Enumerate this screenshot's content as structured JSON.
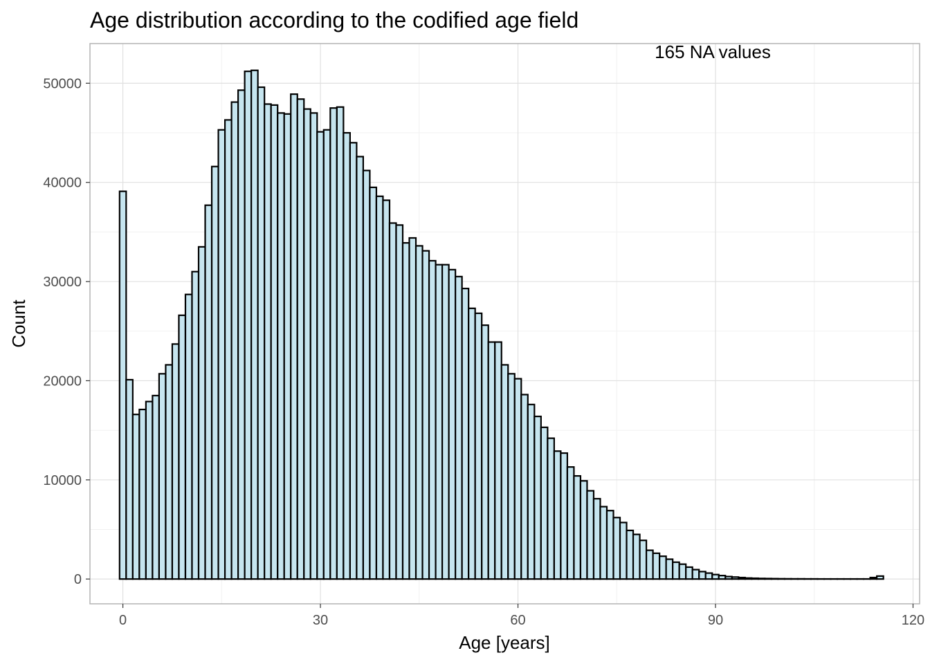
{
  "chart_data": {
    "type": "bar",
    "title": "Age distribution according to the codified age field",
    "xlabel": "Age [years]",
    "ylabel": "Count",
    "annotation": "165 NA values",
    "xlim": [
      -5,
      121
    ],
    "ylim": [
      -2500,
      54000
    ],
    "x_ticks": [
      0,
      30,
      60,
      90,
      120
    ],
    "y_ticks": [
      0,
      10000,
      20000,
      30000,
      40000,
      50000
    ],
    "grid": true,
    "bin_width": 1,
    "x_start": 0,
    "values": [
      39100,
      20100,
      16600,
      17100,
      17900,
      18500,
      20700,
      21600,
      23700,
      26600,
      28700,
      31000,
      33500,
      37700,
      41600,
      45300,
      46300,
      48100,
      49300,
      51200,
      51300,
      49600,
      47900,
      47800,
      47000,
      46900,
      48900,
      48400,
      47400,
      47000,
      45100,
      45300,
      47500,
      47600,
      45000,
      44000,
      42600,
      41200,
      39500,
      38600,
      38200,
      35900,
      35700,
      33900,
      34400,
      33600,
      33100,
      32100,
      31700,
      31700,
      31200,
      30500,
      29300,
      27300,
      26800,
      25600,
      23900,
      23900,
      21600,
      20700,
      20200,
      18600,
      17600,
      16400,
      15300,
      14200,
      12900,
      12700,
      11300,
      10400,
      9900,
      8900,
      8100,
      7300,
      6900,
      6200,
      5700,
      4900,
      4500,
      3900,
      2900,
      2600,
      2300,
      2000,
      1700,
      1500,
      1200,
      950,
      750,
      600,
      450,
      350,
      250,
      200,
      150,
      100,
      80,
      60,
      50,
      40,
      30,
      25,
      20,
      20,
      15,
      15,
      10,
      10,
      10,
      10,
      10,
      10,
      10,
      10,
      150,
      300
    ]
  },
  "colors": {
    "bar_fill": "#c6e5ef",
    "bar_stroke": "#000000",
    "grid_major": "#e0e0e0",
    "grid_minor": "#f1f1f1",
    "panel_border": "#b3b3b3"
  }
}
